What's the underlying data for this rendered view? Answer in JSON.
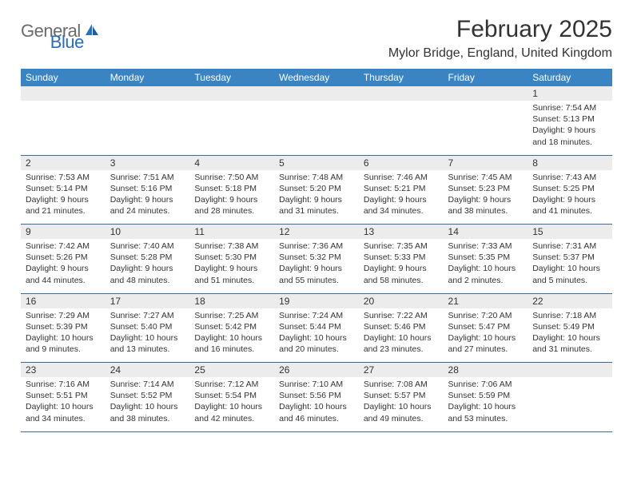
{
  "logo": {
    "text1": "General",
    "text2": "Blue"
  },
  "title": "February 2025",
  "location": "Mylor Bridge, England, United Kingdom",
  "header_bg": "#3b84c4",
  "header_fg": "#ffffff",
  "daynum_bg": "#ececec",
  "border_color": "#3b6a9a",
  "days": [
    "Sunday",
    "Monday",
    "Tuesday",
    "Wednesday",
    "Thursday",
    "Friday",
    "Saturday"
  ],
  "weeks": [
    {
      "nums": [
        "",
        "",
        "",
        "",
        "",
        "",
        "1"
      ],
      "cells": [
        null,
        null,
        null,
        null,
        null,
        null,
        {
          "sunrise": "7:54 AM",
          "sunset": "5:13 PM",
          "daylight": "9 hours and 18 minutes."
        }
      ]
    },
    {
      "nums": [
        "2",
        "3",
        "4",
        "5",
        "6",
        "7",
        "8"
      ],
      "cells": [
        {
          "sunrise": "7:53 AM",
          "sunset": "5:14 PM",
          "daylight": "9 hours and 21 minutes."
        },
        {
          "sunrise": "7:51 AM",
          "sunset": "5:16 PM",
          "daylight": "9 hours and 24 minutes."
        },
        {
          "sunrise": "7:50 AM",
          "sunset": "5:18 PM",
          "daylight": "9 hours and 28 minutes."
        },
        {
          "sunrise": "7:48 AM",
          "sunset": "5:20 PM",
          "daylight": "9 hours and 31 minutes."
        },
        {
          "sunrise": "7:46 AM",
          "sunset": "5:21 PM",
          "daylight": "9 hours and 34 minutes."
        },
        {
          "sunrise": "7:45 AM",
          "sunset": "5:23 PM",
          "daylight": "9 hours and 38 minutes."
        },
        {
          "sunrise": "7:43 AM",
          "sunset": "5:25 PM",
          "daylight": "9 hours and 41 minutes."
        }
      ]
    },
    {
      "nums": [
        "9",
        "10",
        "11",
        "12",
        "13",
        "14",
        "15"
      ],
      "cells": [
        {
          "sunrise": "7:42 AM",
          "sunset": "5:26 PM",
          "daylight": "9 hours and 44 minutes."
        },
        {
          "sunrise": "7:40 AM",
          "sunset": "5:28 PM",
          "daylight": "9 hours and 48 minutes."
        },
        {
          "sunrise": "7:38 AM",
          "sunset": "5:30 PM",
          "daylight": "9 hours and 51 minutes."
        },
        {
          "sunrise": "7:36 AM",
          "sunset": "5:32 PM",
          "daylight": "9 hours and 55 minutes."
        },
        {
          "sunrise": "7:35 AM",
          "sunset": "5:33 PM",
          "daylight": "9 hours and 58 minutes."
        },
        {
          "sunrise": "7:33 AM",
          "sunset": "5:35 PM",
          "daylight": "10 hours and 2 minutes."
        },
        {
          "sunrise": "7:31 AM",
          "sunset": "5:37 PM",
          "daylight": "10 hours and 5 minutes."
        }
      ]
    },
    {
      "nums": [
        "16",
        "17",
        "18",
        "19",
        "20",
        "21",
        "22"
      ],
      "cells": [
        {
          "sunrise": "7:29 AM",
          "sunset": "5:39 PM",
          "daylight": "10 hours and 9 minutes."
        },
        {
          "sunrise": "7:27 AM",
          "sunset": "5:40 PM",
          "daylight": "10 hours and 13 minutes."
        },
        {
          "sunrise": "7:25 AM",
          "sunset": "5:42 PM",
          "daylight": "10 hours and 16 minutes."
        },
        {
          "sunrise": "7:24 AM",
          "sunset": "5:44 PM",
          "daylight": "10 hours and 20 minutes."
        },
        {
          "sunrise": "7:22 AM",
          "sunset": "5:46 PM",
          "daylight": "10 hours and 23 minutes."
        },
        {
          "sunrise": "7:20 AM",
          "sunset": "5:47 PM",
          "daylight": "10 hours and 27 minutes."
        },
        {
          "sunrise": "7:18 AM",
          "sunset": "5:49 PM",
          "daylight": "10 hours and 31 minutes."
        }
      ]
    },
    {
      "nums": [
        "23",
        "24",
        "25",
        "26",
        "27",
        "28",
        ""
      ],
      "cells": [
        {
          "sunrise": "7:16 AM",
          "sunset": "5:51 PM",
          "daylight": "10 hours and 34 minutes."
        },
        {
          "sunrise": "7:14 AM",
          "sunset": "5:52 PM",
          "daylight": "10 hours and 38 minutes."
        },
        {
          "sunrise": "7:12 AM",
          "sunset": "5:54 PM",
          "daylight": "10 hours and 42 minutes."
        },
        {
          "sunrise": "7:10 AM",
          "sunset": "5:56 PM",
          "daylight": "10 hours and 46 minutes."
        },
        {
          "sunrise": "7:08 AM",
          "sunset": "5:57 PM",
          "daylight": "10 hours and 49 minutes."
        },
        {
          "sunrise": "7:06 AM",
          "sunset": "5:59 PM",
          "daylight": "10 hours and 53 minutes."
        },
        null
      ]
    }
  ],
  "labels": {
    "sunrise": "Sunrise:",
    "sunset": "Sunset:",
    "daylight": "Daylight:"
  }
}
